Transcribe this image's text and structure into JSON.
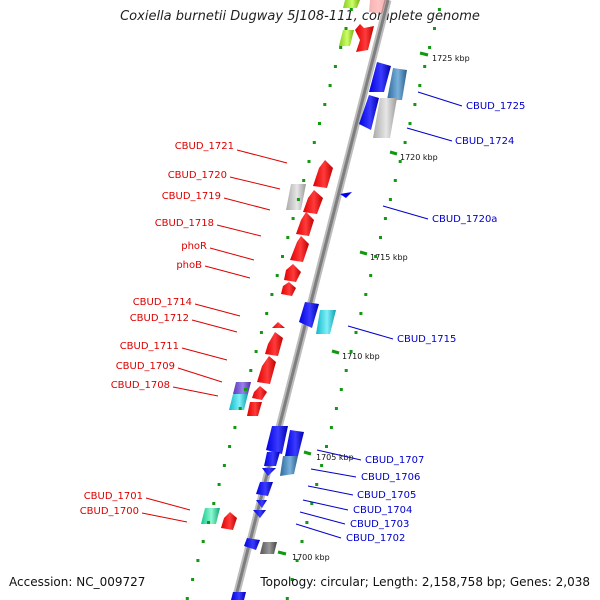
{
  "header": {
    "title": "Coxiella burnetii Dugway 5J108-111, complete genome"
  },
  "footer": {
    "accession": "Accession: NC_009727",
    "topology": "Topology: circular; Length: 2,158,758 bp; Genes: 2,038"
  },
  "colors": {
    "backbone": "#8c8c8c",
    "minus_strand_label": "#dd0000",
    "plus_strand_label": "#0000cc",
    "gc_dots": "#119911"
  },
  "scale_ticks": [
    {
      "kbp": 1725,
      "label": "1725 kbp"
    },
    {
      "kbp": 1720,
      "label": "1720 kbp"
    },
    {
      "kbp": 1715,
      "label": "1715 kbp"
    },
    {
      "kbp": 1710,
      "label": "1710 kbp"
    },
    {
      "kbp": 1705,
      "label": "1705 kbp"
    },
    {
      "kbp": 1700,
      "label": "1700 kbp"
    }
  ],
  "gene_labels": {
    "left": [
      "CBUD_1721",
      "CBUD_1720",
      "CBUD_1719",
      "CBUD_1718",
      "phoR",
      "phoB",
      "CBUD_1714",
      "CBUD_1712",
      "CBUD_1711",
      "CBUD_1709",
      "CBUD_1708",
      "CBUD_1701",
      "CBUD_1700"
    ],
    "right": [
      "CBUD_1725",
      "CBUD_1724",
      "CBUD_1720a",
      "CBUD_1715",
      "CBUD_1707",
      "CBUD_1706",
      "CBUD_1705",
      "CBUD_1704",
      "CBUD_1703",
      "CBUD_1702"
    ]
  }
}
